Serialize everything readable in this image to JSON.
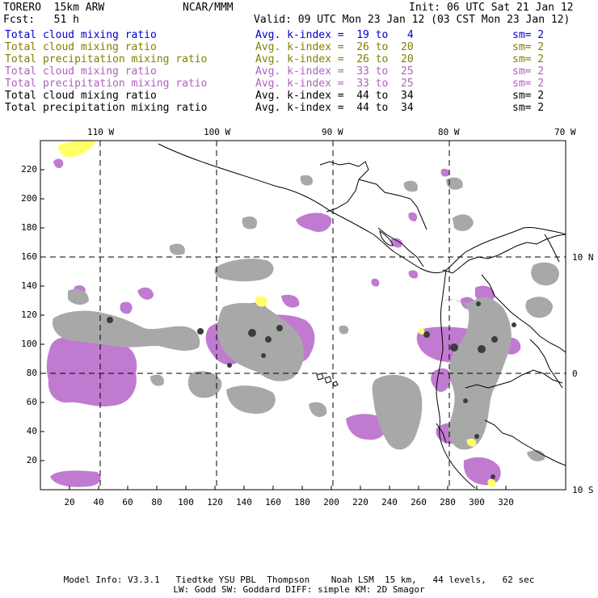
{
  "header": {
    "model": "TORERO  15km ARW",
    "center": "NCAR/MMM",
    "init": "Init: 06 UTC Sat 21 Jan 12",
    "forecast": "Fcst:   51 h",
    "valid": "Valid: 09 UTC Mon 23 Jan 12 (03 CST Mon 23 Jan 12)"
  },
  "legend": [
    {
      "label": "Total cloud mixing ratio",
      "kindex": "Avg. k-index =  19 to   4",
      "sm": "sm= 2",
      "color": "#0000cc"
    },
    {
      "label": "Total cloud mixing ratio",
      "kindex": "Avg. k-index =  26 to  20",
      "sm": "sm= 2",
      "color": "#808000"
    },
    {
      "label": "Total precipitation mixing ratio",
      "kindex": "Avg. k-index =  26 to  20",
      "sm": "sm= 2",
      "color": "#808000"
    },
    {
      "label": "Total cloud mixing ratio",
      "kindex": "Avg. k-index =  33 to  25",
      "sm": "sm= 2",
      "color": "#b060c0"
    },
    {
      "label": "Total precipitation mixing ratio",
      "kindex": "Avg. k-index =  33 to  25",
      "sm": "sm= 2",
      "color": "#b060c0"
    },
    {
      "label": "Total cloud mixing ratio",
      "kindex": "Avg. k-index =  44 to  34",
      "sm": "sm= 2",
      "color": "#000000"
    },
    {
      "label": "Total precipitation mixing ratio",
      "kindex": "Avg. k-index =  44 to  34",
      "sm": "sm= 2",
      "color": "#000000"
    }
  ],
  "map": {
    "top_lon_labels": [
      "110 W",
      "100 W",
      "90 W",
      "80 W",
      "70 W"
    ],
    "right_lat_labels": [
      "10 N",
      "0",
      "10 S"
    ],
    "y_ticks": [
      "220",
      "200",
      "180",
      "160",
      "140",
      "120",
      "100",
      "80",
      "60",
      "40",
      "20"
    ],
    "x_ticks": [
      "20",
      "40",
      "60",
      "80",
      "100",
      "120",
      "140",
      "160",
      "180",
      "200",
      "220",
      "240",
      "260",
      "280",
      "300",
      "320"
    ],
    "colors": {
      "gray": "#a0a0a0",
      "dark_gray": "#404040",
      "purple": "#c07ad0",
      "yellow": "#ffff66"
    }
  },
  "footer": {
    "line1": "Model Info: V3.3.1   Tiedtke YSU PBL  Thompson    Noah LSM  15 km,   44 levels,   62 sec",
    "line2": "LW: Godd SW: Goddard DIFF: simple KM: 2D Smagor"
  }
}
